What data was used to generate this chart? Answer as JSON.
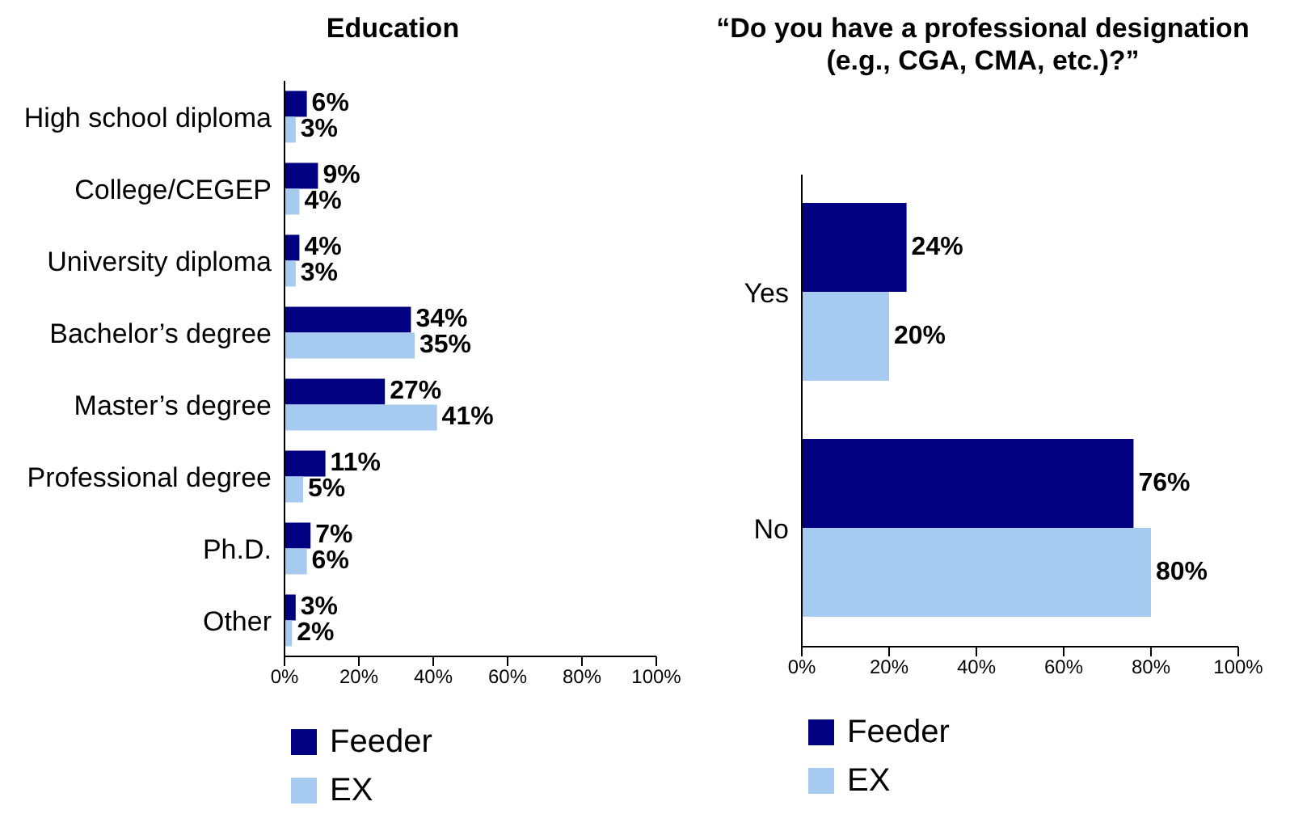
{
  "chart_data": [
    {
      "type": "bar",
      "orientation": "horizontal",
      "title": "Education",
      "categories": [
        "High school diploma",
        "College/CEGEP",
        "University diploma",
        "Bachelor’s degree",
        "Master’s degree",
        "Professional degree",
        "Ph.D.",
        "Other"
      ],
      "series": [
        {
          "name": "Feeder",
          "color": "#000080",
          "values": [
            6,
            9,
            4,
            34,
            27,
            11,
            7,
            3
          ],
          "value_labels": [
            "6%",
            "9%",
            "4%",
            "34%",
            "27%",
            "11%",
            "7%",
            "3%"
          ]
        },
        {
          "name": "EX",
          "color": "#a6caf0",
          "values": [
            3,
            4,
            3,
            35,
            41,
            5,
            6,
            2
          ],
          "value_labels": [
            "3%",
            "4%",
            "3%",
            "35%",
            "41%",
            "5%",
            "6%",
            "2%"
          ]
        }
      ],
      "xlim": [
        0,
        100
      ],
      "xticks": [
        {
          "value": 0,
          "label": "0%"
        },
        {
          "value": 20,
          "label": "20%"
        },
        {
          "value": 40,
          "label": "40%"
        },
        {
          "value": 60,
          "label": "60%"
        },
        {
          "value": 80,
          "label": "80%"
        },
        {
          "value": 100,
          "label": "100%"
        }
      ],
      "grid": false,
      "legend": "bottom left"
    },
    {
      "type": "bar",
      "orientation": "horizontal",
      "title": "“Do you have a professional designation (e.g., CGA, CMA, etc.)?”",
      "categories": [
        "Yes",
        "No"
      ],
      "series": [
        {
          "name": "Feeder",
          "color": "#000080",
          "values": [
            24,
            76
          ],
          "value_labels": [
            "24%",
            "76%"
          ]
        },
        {
          "name": "EX",
          "color": "#a6caf0",
          "values": [
            20,
            80
          ],
          "value_labels": [
            "20%",
            "80%"
          ]
        }
      ],
      "xlim": [
        0,
        100
      ],
      "xticks": [
        {
          "value": 0,
          "label": "0%"
        },
        {
          "value": 20,
          "label": "20%"
        },
        {
          "value": 40,
          "label": "40%"
        },
        {
          "value": 60,
          "label": "60%"
        },
        {
          "value": 80,
          "label": "80%"
        },
        {
          "value": 100,
          "label": "100%"
        }
      ],
      "grid": false,
      "legend": "bottom left"
    }
  ]
}
